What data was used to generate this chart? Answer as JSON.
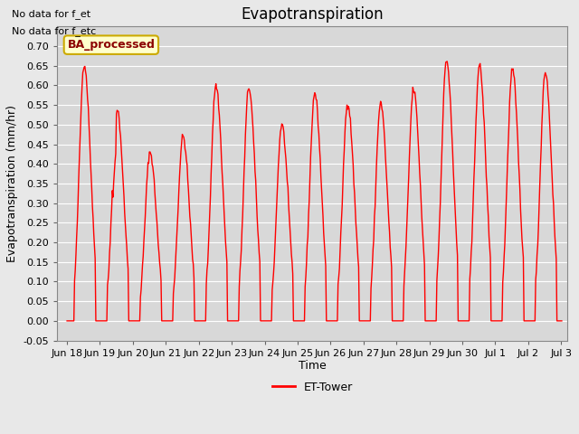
{
  "title": "Evapotranspiration",
  "xlabel": "Time",
  "ylabel": "Evapotranspiration (mm/hr)",
  "ylim": [
    -0.05,
    0.75
  ],
  "yticks": [
    -0.05,
    0.0,
    0.05,
    0.1,
    0.15,
    0.2,
    0.25,
    0.3,
    0.35,
    0.4,
    0.45,
    0.5,
    0.55,
    0.6,
    0.65,
    0.7
  ],
  "line_color": "#ff0000",
  "line_width": 1.0,
  "fig_bg_color": "#e8e8e8",
  "plot_bg_color": "#d8d8d8",
  "grid_color": "#ffffff",
  "annotation_text1": "No data for f_et",
  "annotation_text2": "No data for f_etc",
  "annotation_fontsize": 8,
  "legend_label": "ET-Tower",
  "legend_line_color": "#ff0000",
  "watermark_text": "BA_processed",
  "watermark_bg": "#ffffcc",
  "watermark_border": "#ccaa00",
  "watermark_fontsize": 9,
  "title_fontsize": 12,
  "axis_label_fontsize": 9,
  "tick_fontsize": 8,
  "xtick_labels": [
    "Jun 18",
    "Jun 19",
    "Jun 20",
    "Jun 21",
    "Jun 22",
    "Jun 23",
    "Jun 24",
    "Jun 25",
    "Jun 26",
    "Jun 27",
    "Jun 28",
    "Jun 29",
    "Jun 30",
    "Jul 1",
    "Jul 2",
    "Jul 3"
  ],
  "peak_values": [
    0.655,
    0.54,
    0.43,
    0.47,
    0.6,
    0.595,
    0.5,
    0.58,
    0.555,
    0.555,
    0.59,
    0.665,
    0.65,
    0.64,
    0.635
  ],
  "num_days": 15
}
